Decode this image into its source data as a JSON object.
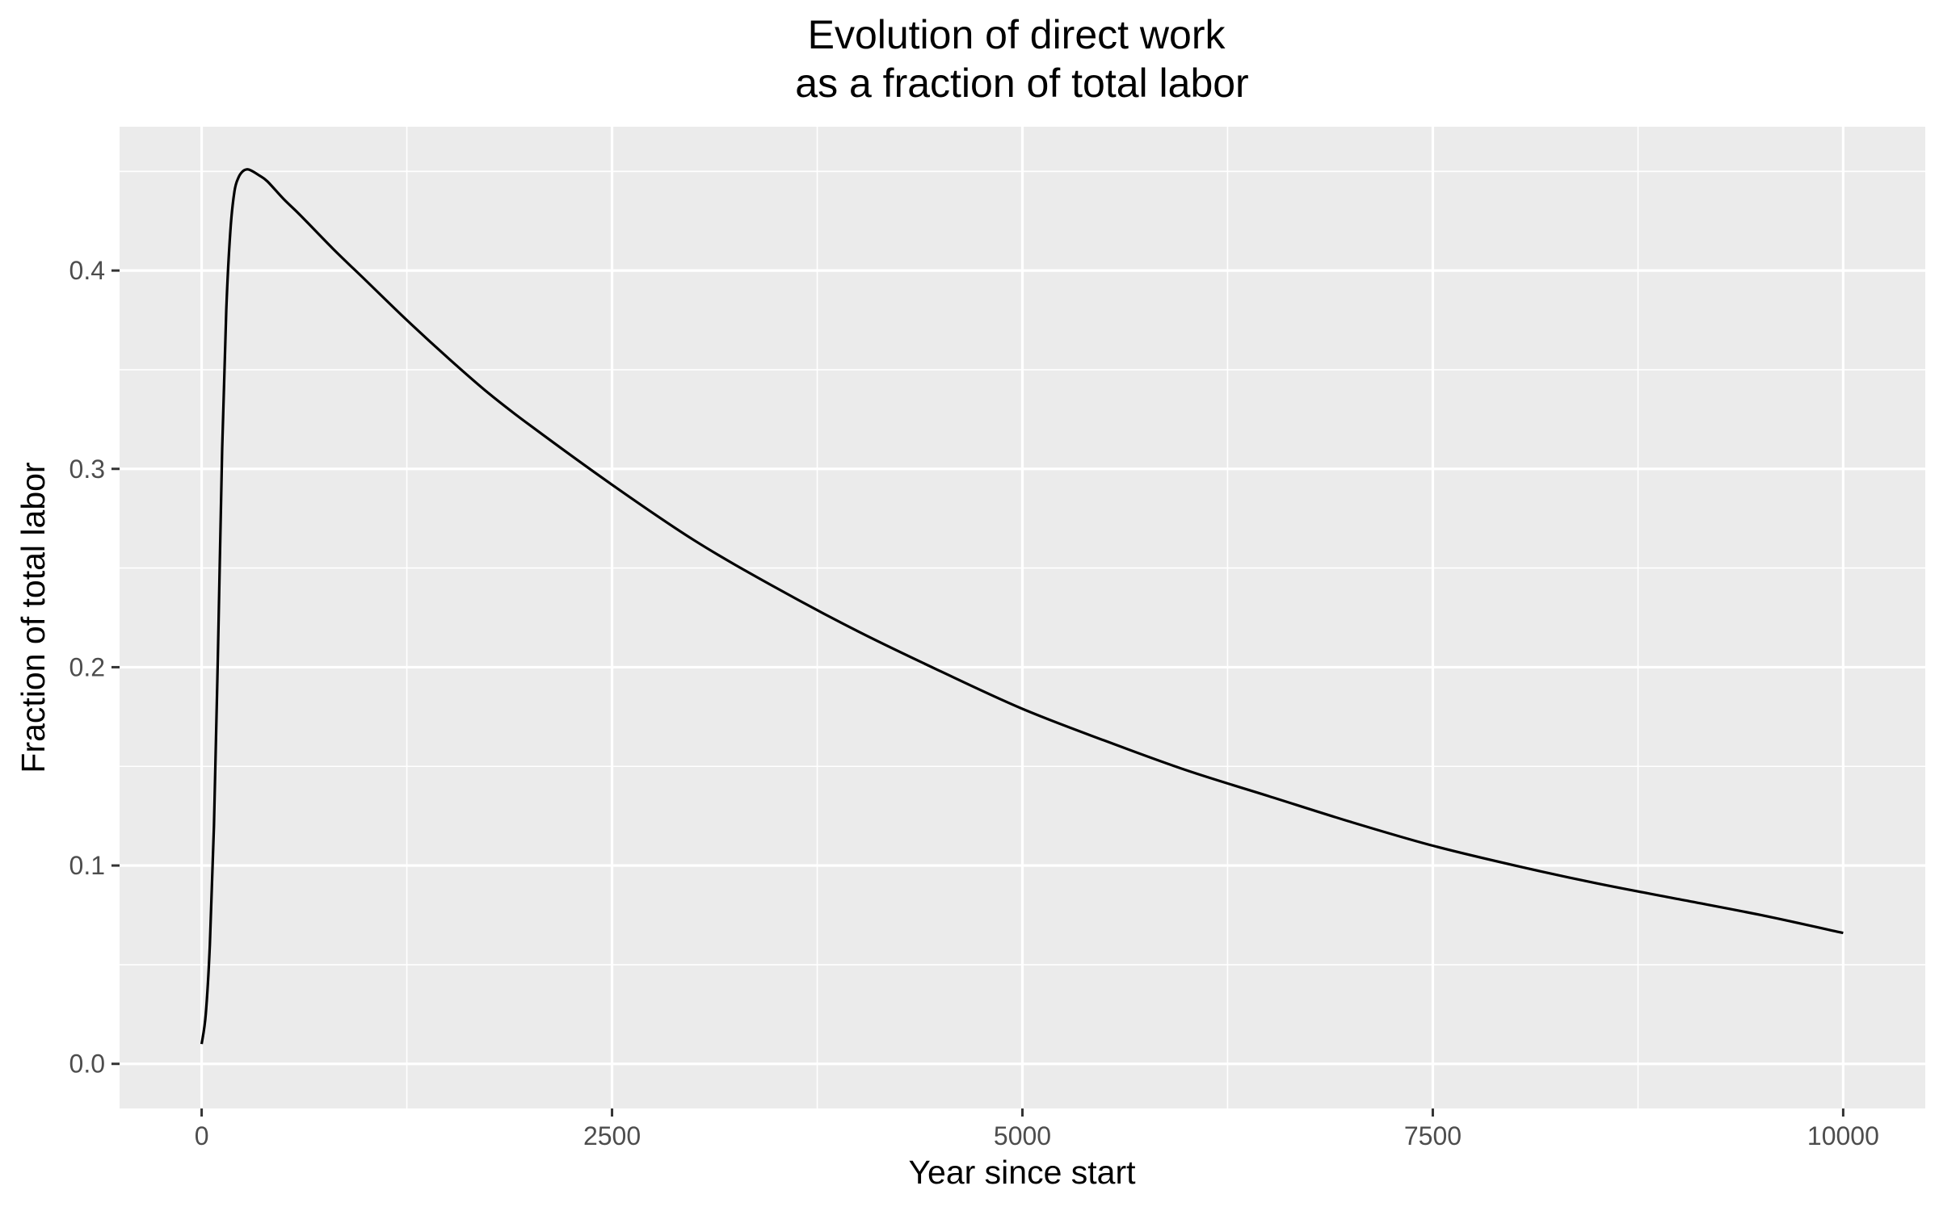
{
  "chart_data": {
    "type": "line",
    "title": "Evolution of direct work\nas a fraction of total labor",
    "xlabel": "Year since start",
    "ylabel": "Fraction of total labor",
    "xlim": [
      -500,
      10500
    ],
    "ylim": [
      -0.0225,
      0.4725
    ],
    "x_ticks": [
      0,
      2500,
      5000,
      7500,
      10000
    ],
    "x_tick_labels": [
      "0",
      "2500",
      "5000",
      "7500",
      "10000"
    ],
    "y_ticks": [
      0.0,
      0.1,
      0.2,
      0.3,
      0.4
    ],
    "y_tick_labels": [
      "0.0",
      "0.1",
      "0.2",
      "0.3",
      "0.4"
    ],
    "grid": true,
    "legend": "none",
    "colors": {
      "panel": "#ebebeb",
      "grid": "#ffffff",
      "line": "#000000",
      "tick_text": "#4d4d4d",
      "tick_mark": "#333333"
    },
    "series": [
      {
        "x": [
          0,
          25,
          50,
          75,
          100,
          125,
          150,
          175,
          200,
          225,
          250,
          275,
          300,
          350,
          400,
          500,
          600,
          800,
          1000,
          1250,
          1500,
          1750,
          2000,
          2500,
          3000,
          3500,
          4000,
          4500,
          5000,
          5500,
          6000,
          6500,
          7000,
          7500,
          8000,
          8500,
          9000,
          9500,
          10000
        ],
        "y": [
          0.01,
          0.025,
          0.06,
          0.12,
          0.21,
          0.31,
          0.38,
          0.42,
          0.44,
          0.447,
          0.45,
          0.451,
          0.4505,
          0.448,
          0.445,
          0.436,
          0.428,
          0.411,
          0.395,
          0.375,
          0.356,
          0.338,
          0.322,
          0.292,
          0.264,
          0.24,
          0.218,
          0.198,
          0.179,
          0.163,
          0.148,
          0.135,
          0.122,
          0.11,
          0.1,
          0.091,
          0.083,
          0.075,
          0.066
        ]
      }
    ]
  }
}
